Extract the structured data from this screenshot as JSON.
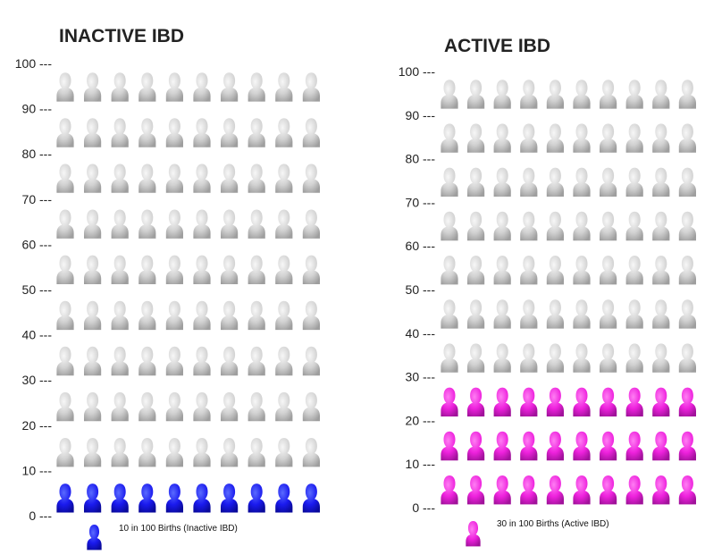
{
  "chart_data": [
    {
      "type": "pictograph",
      "title": "INACTIVE IBD",
      "total": 100,
      "highlighted": 10,
      "yticks": [
        0,
        10,
        20,
        30,
        40,
        50,
        60,
        70,
        80,
        90,
        100
      ],
      "tick_suffix": " ---",
      "highlight_color": "#1a1aee",
      "base_color": "#cfcfcf",
      "legend": "10 in 100 Births (Inactive IBD)"
    },
    {
      "type": "pictograph",
      "title": "ACTIVE IBD",
      "total": 100,
      "highlighted": 30,
      "yticks": [
        0,
        10,
        20,
        30,
        40,
        50,
        60,
        70,
        80,
        90,
        100
      ],
      "tick_suffix": " ---",
      "highlight_color": "#ee22dd",
      "base_color": "#cfcfcf",
      "legend": "30 in 100 Births (Active IBD)"
    }
  ],
  "icon": "person-icon"
}
